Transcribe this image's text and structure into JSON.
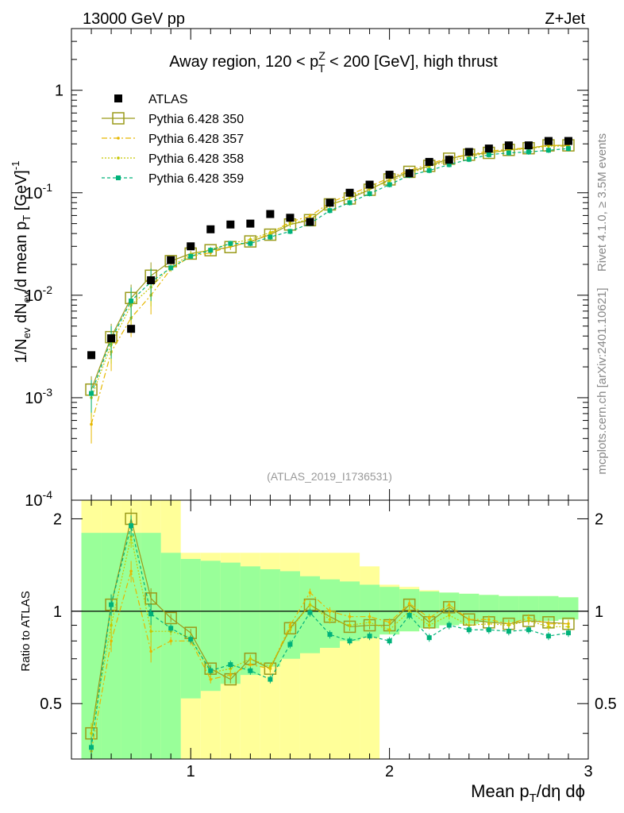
{
  "header": {
    "beam": "13000 GeV pp",
    "process": "Z+Jet",
    "analysis_tag": "(ATLAS_2019_I1736531)",
    "side_top": "Rivet 4.1.0, ≥ 3.5M events",
    "side_bottom": "mcplots.cern.ch [arXiv:2401.10621]"
  },
  "chart_data": {
    "type": "scatter",
    "title": {
      "prefix": "Away region, 120 < p",
      "sup": "Z",
      "sub": "T",
      "suffix": " < 200 [GeV], high thrust"
    },
    "xlabel": {
      "p1": "Mean p",
      "p1sub": "T",
      "p2": "/dη dϕ"
    },
    "ylabel": {
      "a": "1/N",
      "asub": "ev",
      "b": " dN",
      "bsub": "ev",
      "c": "/d mean p",
      "csub": "T",
      "d": " [GeV]",
      "dsup": "-1"
    },
    "ratio_ylabel": "Ratio to ATLAS",
    "xlim": [
      0.4,
      3.0
    ],
    "ylim_main": [
      0.0001,
      4
    ],
    "ylim_ratio": [
      0.33,
      2.3
    ],
    "x_ticks": [
      "1",
      "2",
      "3"
    ],
    "y_main_ticks": [
      {
        "base": "10",
        "exp": "-4"
      },
      {
        "base": "10",
        "exp": "-3"
      },
      {
        "base": "10",
        "exp": "-2"
      },
      {
        "base": "10",
        "exp": "-1"
      },
      {
        "base": "1",
        "exp": ""
      }
    ],
    "y_ratio_ticks": [
      "0.5",
      "1",
      "2"
    ],
    "x": [
      0.5,
      0.6,
      0.7,
      0.8,
      0.9,
      1.0,
      1.1,
      1.2,
      1.3,
      1.4,
      1.5,
      1.6,
      1.7,
      1.8,
      1.9,
      2.0,
      2.1,
      2.2,
      2.3,
      2.4,
      2.5,
      2.6,
      2.7,
      2.8,
      2.9
    ],
    "bin_edges": [
      0.45,
      0.55,
      0.65,
      0.75,
      0.85,
      0.95,
      1.05,
      1.15,
      1.25,
      1.35,
      1.45,
      1.55,
      1.65,
      1.75,
      1.85,
      1.95,
      2.05,
      2.15,
      2.25,
      2.35,
      2.45,
      2.55,
      2.65,
      2.75,
      2.85,
      2.95
    ],
    "data": {
      "name": "ATLAS",
      "values": [
        0.0026,
        0.0038,
        0.0047,
        0.014,
        0.022,
        0.03,
        0.044,
        0.049,
        0.05,
        0.062,
        0.057,
        0.052,
        0.08,
        0.1,
        0.12,
        0.15,
        0.155,
        0.2,
        0.21,
        0.25,
        0.27,
        0.29,
        0.29,
        0.32,
        0.32
      ],
      "band_inner": [
        [
          0.33,
          1.8
        ],
        [
          0.33,
          1.8
        ],
        [
          0.33,
          1.8
        ],
        [
          0.33,
          1.8
        ],
        [
          0.33,
          1.55
        ],
        [
          0.52,
          1.48
        ],
        [
          0.55,
          1.46
        ],
        [
          0.58,
          1.44
        ],
        [
          0.62,
          1.4
        ],
        [
          0.66,
          1.37
        ],
        [
          0.7,
          1.35
        ],
        [
          0.73,
          1.3
        ],
        [
          0.76,
          1.27
        ],
        [
          0.8,
          1.25
        ],
        [
          0.82,
          1.22
        ],
        [
          0.84,
          1.2
        ],
        [
          0.86,
          1.18
        ],
        [
          0.88,
          1.16
        ],
        [
          0.9,
          1.15
        ],
        [
          0.91,
          1.14
        ],
        [
          0.92,
          1.13
        ],
        [
          0.92,
          1.12
        ],
        [
          0.93,
          1.12
        ],
        [
          0.93,
          1.12
        ],
        [
          0.94,
          1.11
        ]
      ],
      "band_outer": [
        [
          0.33,
          2.3
        ],
        [
          0.33,
          2.3
        ],
        [
          0.33,
          2.3
        ],
        [
          0.33,
          2.3
        ],
        [
          0.33,
          2.3
        ],
        [
          0.33,
          1.55
        ],
        [
          0.33,
          1.55
        ],
        [
          0.33,
          1.55
        ],
        [
          0.33,
          1.55
        ],
        [
          0.33,
          1.55
        ],
        [
          0.33,
          1.55
        ],
        [
          0.33,
          1.55
        ],
        [
          0.33,
          1.55
        ],
        [
          0.33,
          1.55
        ],
        [
          0.33,
          1.4
        ],
        [
          0.84,
          1.22
        ],
        [
          0.86,
          1.2
        ],
        [
          0.88,
          1.17
        ],
        [
          0.9,
          1.15
        ],
        [
          0.91,
          1.14
        ],
        [
          0.92,
          1.13
        ],
        [
          0.92,
          1.12
        ],
        [
          0.93,
          1.12
        ],
        [
          0.93,
          1.12
        ],
        [
          0.94,
          1.11
        ]
      ],
      "color": "#000000"
    },
    "series": [
      {
        "name": "Pythia 6.428 350",
        "color": "#9a9a1a",
        "dash": "",
        "marker": "open-square",
        "values": [
          0.0012,
          0.0039,
          0.0094,
          0.0155,
          0.0215,
          0.0255,
          0.0275,
          0.0295,
          0.0335,
          0.039,
          0.049,
          0.054,
          0.077,
          0.088,
          0.107,
          0.135,
          0.16,
          0.183,
          0.215,
          0.235,
          0.245,
          0.262,
          0.272,
          0.29,
          0.29
        ],
        "ratio": [
          0.4,
          1.05,
          2.0,
          1.1,
          0.95,
          0.85,
          0.65,
          0.6,
          0.7,
          0.65,
          0.88,
          1.05,
          0.96,
          0.89,
          0.9,
          0.9,
          1.05,
          0.92,
          1.03,
          0.94,
          0.92,
          0.91,
          0.93,
          0.92,
          0.91
        ]
      },
      {
        "name": "Pythia 6.428 357",
        "color": "#e6b800",
        "dash": "7,3,2,3",
        "marker": "dot",
        "values": [
          0.00055,
          0.0028,
          0.006,
          0.01,
          0.018,
          0.024,
          0.026,
          0.03,
          0.033,
          0.04,
          0.052,
          0.059,
          0.08,
          0.096,
          0.115,
          0.14,
          0.165,
          0.19,
          0.22,
          0.235,
          0.255,
          0.265,
          0.275,
          0.29,
          0.29
        ],
        "ratio": [
          0.35,
          0.8,
          1.35,
          0.74,
          0.8,
          0.8,
          0.6,
          0.62,
          0.67,
          0.65,
          0.9,
          1.15,
          1.0,
          0.96,
          0.96,
          0.92,
          1.06,
          0.95,
          1.05,
          0.94,
          0.94,
          0.91,
          0.95,
          0.91,
          0.91
        ]
      },
      {
        "name": "Pythia 6.428 358",
        "color": "#c8c800",
        "dash": "2,2",
        "marker": "dot",
        "values": [
          0.001,
          0.0033,
          0.008,
          0.012,
          0.019,
          0.025,
          0.028,
          0.032,
          0.035,
          0.041,
          0.05,
          0.055,
          0.075,
          0.09,
          0.11,
          0.13,
          0.155,
          0.18,
          0.205,
          0.225,
          0.245,
          0.26,
          0.27,
          0.285,
          0.285
        ],
        "ratio": [
          0.4,
          0.9,
          1.75,
          0.86,
          0.86,
          0.82,
          0.63,
          0.65,
          0.7,
          0.66,
          0.87,
          1.05,
          0.94,
          0.9,
          0.92,
          0.87,
          1.0,
          0.9,
          0.97,
          0.9,
          0.91,
          0.9,
          0.93,
          0.89,
          0.89
        ]
      },
      {
        "name": "Pythia 6.428 359",
        "color": "#00b27a",
        "dash": "4,3",
        "marker": "filled-square",
        "values": [
          0.0011,
          0.0037,
          0.0088,
          0.0135,
          0.0185,
          0.024,
          0.0275,
          0.032,
          0.032,
          0.037,
          0.042,
          0.05,
          0.067,
          0.08,
          0.098,
          0.12,
          0.148,
          0.165,
          0.188,
          0.212,
          0.235,
          0.245,
          0.25,
          0.26,
          0.27
        ],
        "ratio": [
          0.36,
          1.05,
          1.9,
          0.98,
          0.88,
          0.81,
          0.64,
          0.67,
          0.64,
          0.6,
          0.78,
          0.99,
          0.84,
          0.8,
          0.83,
          0.8,
          0.97,
          0.82,
          0.9,
          0.87,
          0.87,
          0.86,
          0.87,
          0.83,
          0.85
        ]
      }
    ],
    "legend_position": "top-left"
  }
}
